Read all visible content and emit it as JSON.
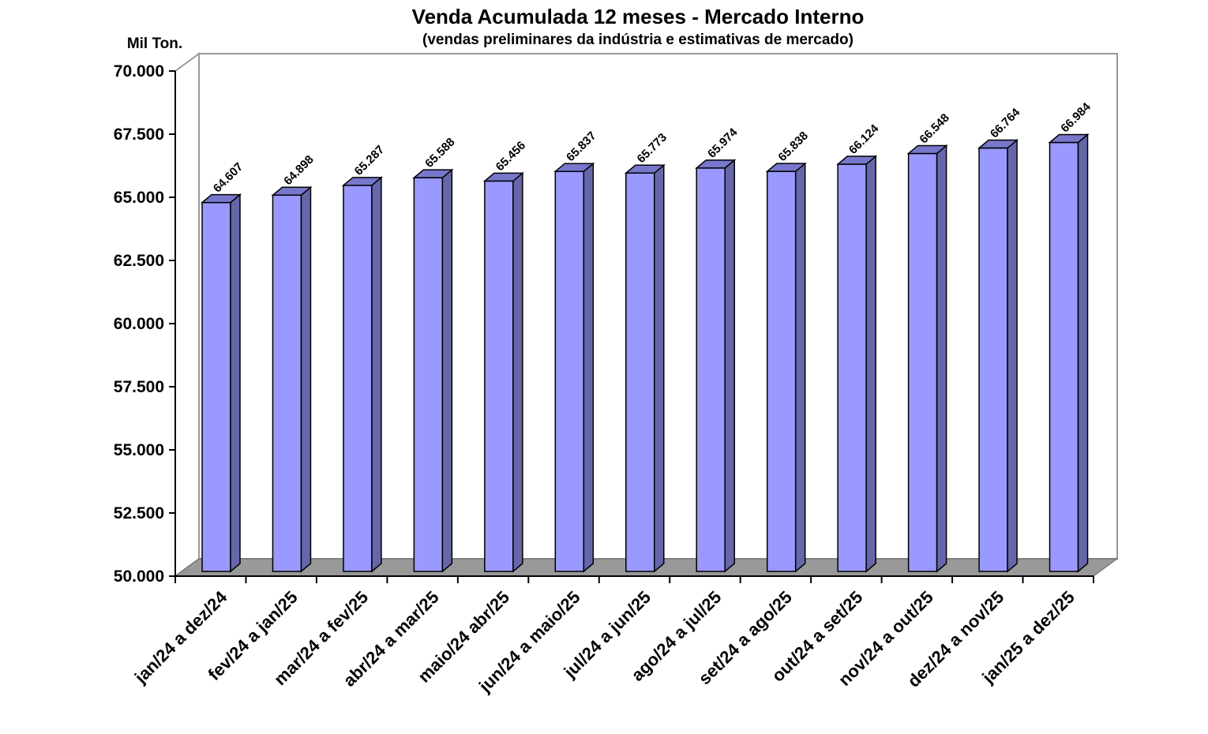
{
  "chart_data": {
    "type": "bar",
    "title": "Venda Acumulada 12 meses -  Mercado Interno",
    "subtitle": "(vendas preliminares da indústria e estimativas de mercado)",
    "ylabel": "Mil Ton.",
    "xlabel": "",
    "ylim": [
      50000,
      70000
    ],
    "yticks": [
      "50.000",
      "52.500",
      "55.000",
      "57.500",
      "60.000",
      "62.500",
      "65.000",
      "67.500",
      "70.000"
    ],
    "ytick_values": [
      50000,
      52500,
      55000,
      57500,
      60000,
      62500,
      65000,
      67500,
      70000
    ],
    "grid": false,
    "three_d": true,
    "categories": [
      "jan/24 a dez/24",
      "fev/24 a jan/25",
      "mar/24 a fev/25",
      "abr/24 a mar/25",
      "maio/24 abr/25",
      "jun/24 a maio/25",
      "jul/24 a jun/25",
      "ago/24 a jul/25",
      "set/24 a ago/25",
      "out/24 a set/25",
      "nov/24 a out/25",
      "dez/24 a nov/25",
      "jan/25 a dez/25"
    ],
    "values": [
      64607,
      64898,
      65287,
      65588,
      65456,
      65837,
      65773,
      65974,
      65838,
      66124,
      66548,
      66764,
      66984
    ],
    "data_labels": [
      "64.607",
      "64.898",
      "65.287",
      "65.588",
      "65.456",
      "65.837",
      "65.773",
      "65.974",
      "65.838",
      "66.124",
      "66.548",
      "66.764",
      "66.984"
    ],
    "colors": {
      "bar_front": "#9999ff",
      "bar_side": "#6666aa",
      "bar_top": "#7777cc",
      "floor": "#999999",
      "wall": "#ffffff"
    }
  }
}
